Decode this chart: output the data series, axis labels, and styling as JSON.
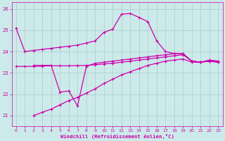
{
  "xlabel": "Windchill (Refroidissement éolien,°C)",
  "xlim": [
    -0.5,
    23.5
  ],
  "ylim": [
    20.5,
    26.3
  ],
  "yticks": [
    21,
    22,
    23,
    24,
    25,
    26
  ],
  "xticks": [
    0,
    1,
    2,
    3,
    4,
    5,
    6,
    7,
    8,
    9,
    10,
    11,
    12,
    13,
    14,
    15,
    16,
    17,
    18,
    19,
    20,
    21,
    22,
    23
  ],
  "bg_color": "#cceaea",
  "grid_color": "#aacccc",
  "line_color": "#cc00aa",
  "line1_x": [
    0,
    1,
    2,
    3,
    4,
    5,
    6,
    7,
    8,
    9,
    10,
    11,
    12,
    13,
    14,
    15,
    16,
    17,
    18,
    19,
    20,
    21,
    22,
    23
  ],
  "line1_y": [
    25.1,
    24.0,
    24.05,
    24.1,
    24.15,
    24.2,
    24.25,
    24.3,
    24.4,
    24.5,
    24.9,
    25.05,
    25.75,
    25.78,
    25.6,
    25.4,
    24.5,
    24.0,
    23.9,
    23.9,
    23.55,
    23.5,
    23.6,
    23.55
  ],
  "line2_x": [
    2,
    3,
    4,
    5,
    6,
    7,
    8,
    9,
    10,
    11,
    12,
    13,
    14,
    15,
    16,
    17,
    18,
    19,
    20,
    21,
    22,
    23
  ],
  "line2_y": [
    23.35,
    23.35,
    23.35,
    22.1,
    22.15,
    21.45,
    23.3,
    23.45,
    23.5,
    23.55,
    23.6,
    23.65,
    23.7,
    23.75,
    23.8,
    23.85,
    23.9,
    23.9,
    23.55,
    23.5,
    23.55,
    23.55
  ],
  "line3_x": [
    0,
    1,
    2,
    3,
    4,
    5,
    6,
    7,
    8,
    9,
    10,
    11,
    12,
    13,
    14,
    15,
    16,
    17,
    18,
    19,
    20,
    21,
    22,
    23
  ],
  "line3_y": [
    23.3,
    23.3,
    23.3,
    23.32,
    23.33,
    23.33,
    23.33,
    23.34,
    23.35,
    23.38,
    23.42,
    23.45,
    23.5,
    23.55,
    23.6,
    23.65,
    23.7,
    23.75,
    23.8,
    23.85,
    23.55,
    23.5,
    23.55,
    23.5
  ],
  "line4_x": [
    2,
    3,
    4,
    5,
    6,
    7,
    8,
    9,
    10,
    11,
    12,
    13,
    14,
    15,
    16,
    17,
    18,
    19,
    20,
    21,
    22,
    23
  ],
  "line4_y": [
    21.0,
    21.15,
    21.3,
    21.5,
    21.7,
    21.85,
    22.05,
    22.25,
    22.5,
    22.7,
    22.9,
    23.05,
    23.2,
    23.35,
    23.45,
    23.55,
    23.6,
    23.65,
    23.5,
    23.5,
    23.55,
    23.5
  ]
}
